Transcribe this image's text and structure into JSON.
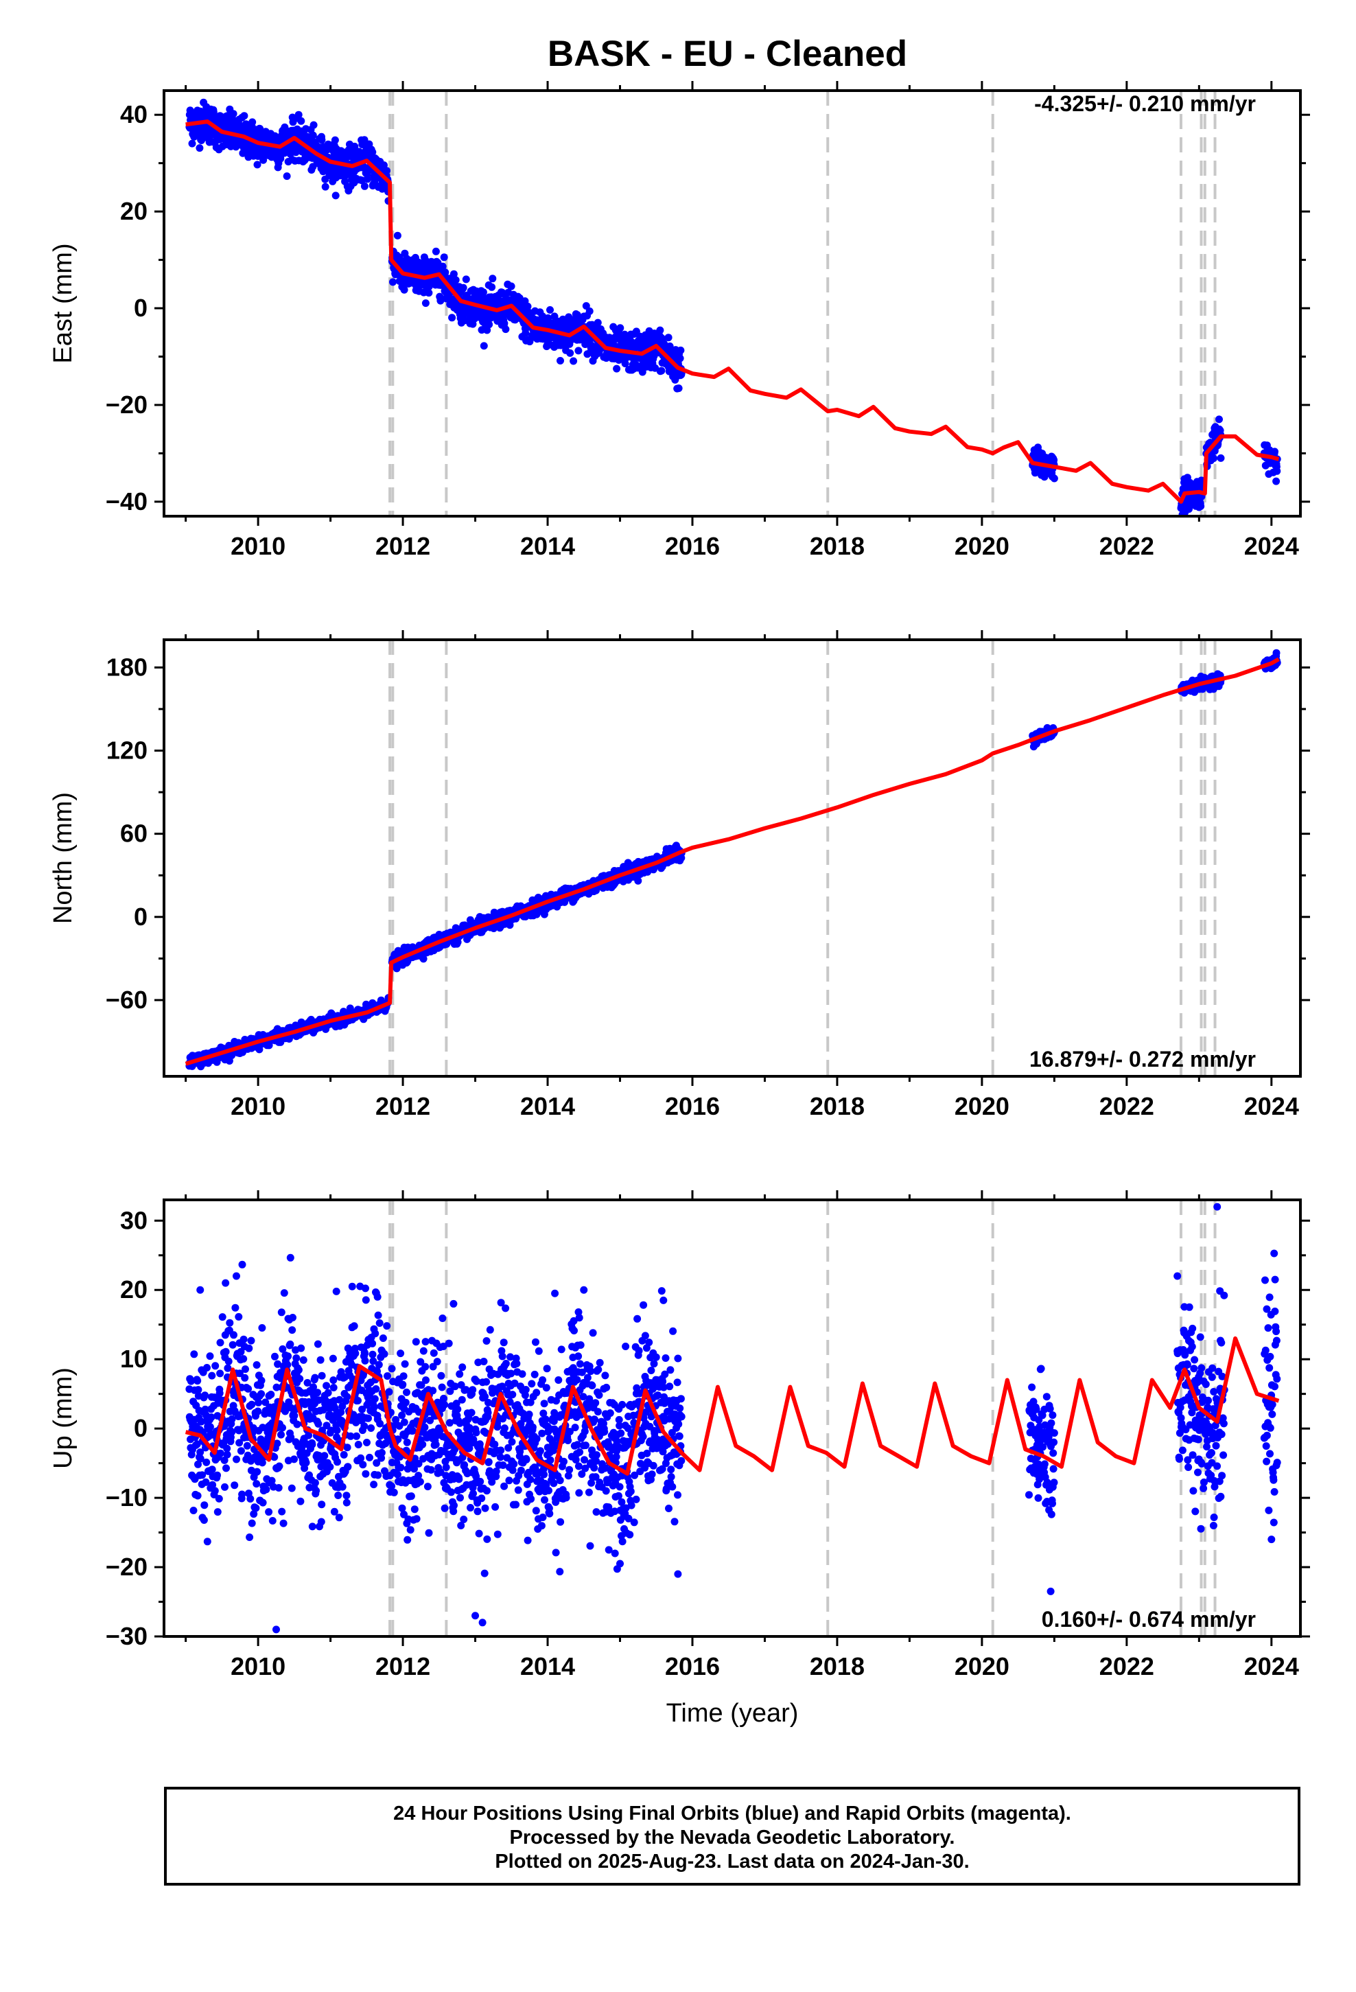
{
  "title": "BASK  - EU - Cleaned",
  "footer": {
    "line1": "24 Hour Positions Using Final Orbits (blue) and Rapid Orbits (magenta).",
    "line2": "Processed by the Nevada Geodetic Laboratory.",
    "line3": "Plotted on 2025-Aug-23. Last data on 2024-Jan-30."
  },
  "colors": {
    "data": "#0000ff",
    "model": "#ff0000",
    "breaks": "#c8c8c8",
    "frame": "#000000"
  },
  "chart_data": [
    {
      "type": "scatter",
      "ylabel": "East (mm)",
      "xlabel": "",
      "rate_label": "-4.325+/- 0.210 mm/yr",
      "rate_position": "top-right",
      "xlim": [
        2008.7,
        2024.4
      ],
      "ylim": [
        -43,
        45
      ],
      "x_ticks": [
        2010,
        2012,
        2014,
        2016,
        2018,
        2020,
        2022,
        2024
      ],
      "y_ticks": [
        -40,
        -20,
        0,
        20,
        40
      ],
      "grid": false,
      "breaks": [
        2011.82,
        2011.86,
        2012.6,
        2017.87,
        2020.15,
        2022.75,
        2023.03,
        2023.08,
        2023.22
      ],
      "data_segments": [
        {
          "x0": 2009.05,
          "x1": 2011.8,
          "y0": 39,
          "y1": 29,
          "noise": 2.0
        },
        {
          "x0": 2011.85,
          "x1": 2015.85,
          "y0": 10,
          "y1": -13,
          "noise": 2.0
        },
        {
          "x0": 2020.7,
          "x1": 2021.0,
          "y0": -31,
          "y1": -33,
          "noise": 1.5
        },
        {
          "x0": 2022.75,
          "x1": 2023.05,
          "y0": -39,
          "y1": -38,
          "noise": 1.5
        },
        {
          "x0": 2023.1,
          "x1": 2023.3,
          "y0": -30,
          "y1": -27,
          "noise": 1.5
        },
        {
          "x0": 2023.9,
          "x1": 2024.08,
          "y0": -30,
          "y1": -29,
          "noise": 1.5
        }
      ],
      "model": [
        [
          2009.0,
          38
        ],
        [
          2009.3,
          38.6
        ],
        [
          2009.5,
          36.5
        ],
        [
          2009.8,
          35.5
        ],
        [
          2010.0,
          34.2
        ],
        [
          2010.3,
          33.4
        ],
        [
          2010.5,
          35.2
        ],
        [
          2010.8,
          32
        ],
        [
          2011.0,
          30.3
        ],
        [
          2011.3,
          29.4
        ],
        [
          2011.5,
          30.5
        ],
        [
          2011.82,
          26
        ],
        [
          2011.82,
          25.5
        ],
        [
          2011.84,
          10
        ],
        [
          2012.0,
          7.2
        ],
        [
          2012.3,
          6.3
        ],
        [
          2012.5,
          7
        ],
        [
          2012.8,
          1.5
        ],
        [
          2013.0,
          0.7
        ],
        [
          2013.3,
          -0.4
        ],
        [
          2013.5,
          0.5
        ],
        [
          2013.8,
          -4
        ],
        [
          2014.0,
          -4.5
        ],
        [
          2014.3,
          -5.6
        ],
        [
          2014.5,
          -3.8
        ],
        [
          2014.8,
          -8.2
        ],
        [
          2015.0,
          -8.8
        ],
        [
          2015.3,
          -9.4
        ],
        [
          2015.5,
          -7.8
        ],
        [
          2015.8,
          -12.3
        ],
        [
          2016.0,
          -13.5
        ],
        [
          2016.3,
          -14.2
        ],
        [
          2016.5,
          -12.5
        ],
        [
          2016.8,
          -17
        ],
        [
          2017.0,
          -17.7
        ],
        [
          2017.3,
          -18.5
        ],
        [
          2017.5,
          -16.8
        ],
        [
          2017.87,
          -21.3
        ],
        [
          2018.0,
          -21
        ],
        [
          2018.3,
          -22.3
        ],
        [
          2018.5,
          -20.4
        ],
        [
          2018.8,
          -24.8
        ],
        [
          2019.0,
          -25.5
        ],
        [
          2019.3,
          -26
        ],
        [
          2019.5,
          -24.5
        ],
        [
          2019.8,
          -28.7
        ],
        [
          2020.0,
          -29.2
        ],
        [
          2020.15,
          -30
        ],
        [
          2020.3,
          -28.8
        ],
        [
          2020.5,
          -27.7
        ],
        [
          2020.7,
          -32
        ],
        [
          2021.0,
          -32.8
        ],
        [
          2021.3,
          -33.6
        ],
        [
          2021.5,
          -32
        ],
        [
          2021.8,
          -36.3
        ],
        [
          2022.0,
          -37
        ],
        [
          2022.3,
          -37.7
        ],
        [
          2022.5,
          -36.3
        ],
        [
          2022.75,
          -40
        ],
        [
          2022.8,
          -38.3
        ],
        [
          2023.0,
          -38
        ],
        [
          2023.08,
          -38.3
        ],
        [
          2023.1,
          -30
        ],
        [
          2023.3,
          -26.5
        ],
        [
          2023.5,
          -26.5
        ],
        [
          2023.8,
          -30.3
        ],
        [
          2024.0,
          -30.8
        ],
        [
          2024.1,
          -31.2
        ]
      ]
    },
    {
      "type": "scatter",
      "ylabel": "North (mm)",
      "xlabel": "",
      "rate_label": "16.879+/- 0.272 mm/yr",
      "rate_position": "bottom-right",
      "xlim": [
        2008.7,
        2024.4
      ],
      "ylim": [
        -115,
        200
      ],
      "x_ticks": [
        2010,
        2012,
        2014,
        2016,
        2018,
        2020,
        2022,
        2024
      ],
      "y_ticks": [
        -60,
        0,
        60,
        120,
        180
      ],
      "grid": false,
      "breaks": [
        2011.82,
        2011.86,
        2012.6,
        2017.87,
        2020.15,
        2022.75,
        2023.03,
        2023.08,
        2023.22
      ],
      "data_segments": [
        {
          "x0": 2009.05,
          "x1": 2011.8,
          "y0": -105,
          "y1": -63,
          "noise": 2.0
        },
        {
          "x0": 2011.85,
          "x1": 2015.85,
          "y0": -38,
          "y1": 48,
          "noise": 2.5
        },
        {
          "x0": 2020.7,
          "x1": 2021.0,
          "y0": 129,
          "y1": 134,
          "noise": 2
        },
        {
          "x0": 2022.75,
          "x1": 2023.3,
          "y0": 163,
          "y1": 172,
          "noise": 2
        },
        {
          "x0": 2023.9,
          "x1": 2024.08,
          "y0": 183,
          "y1": 188,
          "noise": 2
        }
      ],
      "model": [
        [
          2009.0,
          -106
        ],
        [
          2009.5,
          -98
        ],
        [
          2010.0,
          -90
        ],
        [
          2010.5,
          -83
        ],
        [
          2011.0,
          -75
        ],
        [
          2011.5,
          -69
        ],
        [
          2011.82,
          -62
        ],
        [
          2011.84,
          -33
        ],
        [
          2012.0,
          -29
        ],
        [
          2012.5,
          -18
        ],
        [
          2013.0,
          -8
        ],
        [
          2013.5,
          1
        ],
        [
          2014.0,
          11
        ],
        [
          2014.5,
          20
        ],
        [
          2015.0,
          30
        ],
        [
          2015.5,
          39
        ],
        [
          2015.85,
          47
        ],
        [
          2016.0,
          50
        ],
        [
          2016.5,
          56
        ],
        [
          2017.0,
          64
        ],
        [
          2017.5,
          71
        ],
        [
          2018.0,
          79
        ],
        [
          2018.5,
          88
        ],
        [
          2019.0,
          96
        ],
        [
          2019.5,
          103
        ],
        [
          2020.0,
          113
        ],
        [
          2020.15,
          118
        ],
        [
          2020.5,
          124
        ],
        [
          2021.0,
          134
        ],
        [
          2021.5,
          142
        ],
        [
          2022.0,
          151
        ],
        [
          2022.5,
          160
        ],
        [
          2023.0,
          168
        ],
        [
          2023.5,
          174
        ],
        [
          2024.0,
          183
        ],
        [
          2024.1,
          186
        ]
      ]
    },
    {
      "type": "scatter",
      "ylabel": "Up (mm)",
      "xlabel": "Time (year)",
      "rate_label": "0.160+/- 0.674 mm/yr",
      "rate_position": "bottom-right",
      "xlim": [
        2008.7,
        2024.4
      ],
      "ylim": [
        -30,
        33
      ],
      "x_ticks": [
        2010,
        2012,
        2014,
        2016,
        2018,
        2020,
        2022,
        2024
      ],
      "y_ticks": [
        -30,
        -20,
        -10,
        0,
        10,
        20,
        30
      ],
      "grid": false,
      "breaks": [
        2011.82,
        2011.86,
        2012.6,
        2017.87,
        2020.15,
        2022.75,
        2023.03,
        2023.08,
        2023.22
      ],
      "data_segments": [
        {
          "x0": 2009.05,
          "x1": 2015.85,
          "y0": 0,
          "y1": 0,
          "noise": 6.0
        },
        {
          "x0": 2020.65,
          "x1": 2021.0,
          "y0": -2,
          "y1": -2,
          "noise": 5
        },
        {
          "x0": 2022.7,
          "x1": 2023.35,
          "y0": 5,
          "y1": 0,
          "noise": 6
        },
        {
          "x0": 2023.9,
          "x1": 2024.08,
          "y0": 0,
          "y1": 0,
          "noise": 7
        }
      ],
      "model": [
        [
          2009.0,
          -0.5
        ],
        [
          2009.2,
          -1
        ],
        [
          2009.4,
          -3.5
        ],
        [
          2009.65,
          8.5
        ],
        [
          2009.9,
          -1.5
        ],
        [
          2010.15,
          -4.5
        ],
        [
          2010.4,
          8.5
        ],
        [
          2010.65,
          0
        ],
        [
          2010.9,
          -1
        ],
        [
          2011.15,
          -3
        ],
        [
          2011.4,
          9
        ],
        [
          2011.7,
          7
        ],
        [
          2011.82,
          0
        ],
        [
          2011.9,
          -2.5
        ],
        [
          2012.1,
          -4.5
        ],
        [
          2012.35,
          5
        ],
        [
          2012.6,
          -0.5
        ],
        [
          2012.85,
          -3.5
        ],
        [
          2013.1,
          -5
        ],
        [
          2013.35,
          5
        ],
        [
          2013.6,
          -0.5
        ],
        [
          2013.85,
          -4.5
        ],
        [
          2014.1,
          -6
        ],
        [
          2014.35,
          6
        ],
        [
          2014.6,
          0
        ],
        [
          2014.85,
          -5
        ],
        [
          2015.1,
          -6.5
        ],
        [
          2015.35,
          5.5
        ],
        [
          2015.6,
          -0.5
        ],
        [
          2015.85,
          -3.5
        ],
        [
          2016.1,
          -6
        ],
        [
          2016.35,
          6
        ],
        [
          2016.6,
          -2.5
        ],
        [
          2016.85,
          -4
        ],
        [
          2017.1,
          -6
        ],
        [
          2017.35,
          6
        ],
        [
          2017.6,
          -2.5
        ],
        [
          2017.85,
          -3.5
        ],
        [
          2018.1,
          -5.5
        ],
        [
          2018.35,
          6.5
        ],
        [
          2018.6,
          -2.5
        ],
        [
          2018.85,
          -4
        ],
        [
          2019.1,
          -5.5
        ],
        [
          2019.35,
          6.5
        ],
        [
          2019.6,
          -2.5
        ],
        [
          2019.85,
          -4
        ],
        [
          2020.1,
          -5
        ],
        [
          2020.35,
          7
        ],
        [
          2020.6,
          -3
        ],
        [
          2020.85,
          -4
        ],
        [
          2021.1,
          -5.5
        ],
        [
          2021.35,
          7
        ],
        [
          2021.6,
          -2
        ],
        [
          2021.85,
          -4
        ],
        [
          2022.1,
          -5
        ],
        [
          2022.35,
          7
        ],
        [
          2022.6,
          3
        ],
        [
          2022.8,
          8.5
        ],
        [
          2023.0,
          3
        ],
        [
          2023.25,
          1
        ],
        [
          2023.5,
          13
        ],
        [
          2023.8,
          5
        ],
        [
          2024.1,
          4
        ]
      ],
      "outliers": [
        [
          2009.2,
          20
        ],
        [
          2009.7,
          22
        ],
        [
          2009.55,
          21
        ],
        [
          2010.25,
          -29
        ],
        [
          2011.3,
          20.5
        ],
        [
          2011.65,
          19
        ],
        [
          2012.7,
          18
        ],
        [
          2013.0,
          -27
        ],
        [
          2013.1,
          -28
        ],
        [
          2014.1,
          19.5
        ],
        [
          2014.5,
          20
        ],
        [
          2015.6,
          18.5
        ],
        [
          2015.8,
          -21
        ],
        [
          2020.95,
          -23.5
        ],
        [
          2022.7,
          22
        ],
        [
          2023.25,
          32
        ],
        [
          2023.2,
          -14
        ],
        [
          2024.05,
          21.5
        ],
        [
          2024.0,
          -16
        ]
      ]
    }
  ]
}
